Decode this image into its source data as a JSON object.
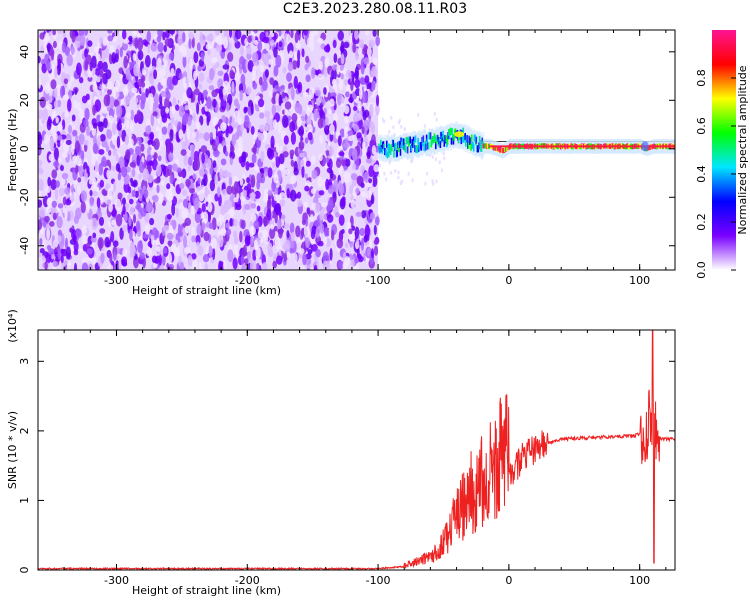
{
  "title": "C2E3.2023.280.08.11.R03",
  "chart_data": [
    {
      "type": "heatmap",
      "xlabel": "Height of straight line (km)",
      "ylabel": "Frequency (Hz)",
      "xlim": [
        -360,
        127
      ],
      "ylim": [
        -50,
        49
      ],
      "xticks": [
        -300,
        -200,
        -100,
        0,
        100
      ],
      "yticks": [
        -40,
        -20,
        0,
        20,
        40
      ],
      "noise_region_x": [
        -360,
        -100
      ],
      "signal_trace": {
        "x": [
          -100,
          -90,
          -80,
          -70,
          -60,
          -50,
          -40,
          -35,
          -30,
          -25,
          -20,
          -15,
          -10,
          -5,
          0,
          10,
          20,
          30,
          50,
          70,
          90,
          100,
          105,
          110,
          115,
          120,
          127
        ],
        "frequency": [
          0,
          0,
          1,
          2,
          3,
          4,
          6,
          5,
          3,
          2,
          1,
          1,
          0,
          -1,
          1,
          1,
          1,
          1,
          1,
          1,
          1,
          1,
          0,
          1,
          1,
          1,
          1
        ]
      },
      "colorbar": {
        "label": "Normalized spectral amplitude",
        "ticks": [
          0.0,
          0.2,
          0.4,
          0.6,
          0.8
        ],
        "range": [
          0,
          1
        ],
        "colormap": [
          "#ffffff",
          "#7a00ff",
          "#0000ff",
          "#00e6ff",
          "#00ff00",
          "#ffff00",
          "#ff0000",
          "#ff1493"
        ]
      }
    },
    {
      "type": "line",
      "xlabel": "Height of straight line (km)",
      "ylabel": "SNR (10 * v/v)",
      "multiplier_label": "(x10⁴)",
      "xlim": [
        -360,
        127
      ],
      "ylim": [
        0,
        3.45
      ],
      "xticks": [
        -300,
        -200,
        -100,
        0,
        100
      ],
      "yticks": [
        0,
        1,
        2,
        3
      ],
      "color": "#ee2020",
      "series": [
        {
          "x": [
            -360,
            -200,
            -100,
            -80,
            -60,
            -50,
            -40,
            -30,
            -20,
            -10,
            0,
            10,
            20,
            30,
            40,
            60,
            80,
            95,
            100,
            105,
            108,
            110,
            112,
            115,
            120,
            127
          ],
          "y": [
            0.02,
            0.02,
            0.02,
            0.05,
            0.15,
            0.3,
            0.6,
            0.85,
            1.0,
            1.2,
            1.35,
            1.6,
            1.75,
            1.82,
            1.88,
            1.9,
            1.92,
            1.93,
            1.95,
            2.0,
            2.2,
            1.8,
            2.0,
            1.9,
            1.88,
            1.88
          ]
        }
      ]
    }
  ]
}
